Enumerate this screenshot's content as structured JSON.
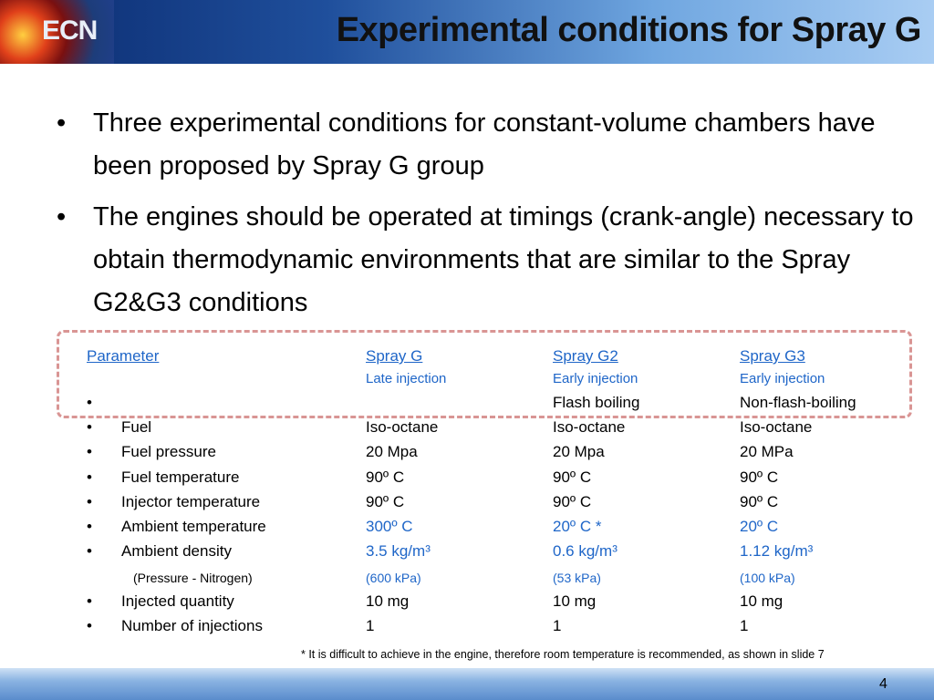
{
  "header": {
    "logo": "ECN",
    "title": "Experimental conditions for Spray G"
  },
  "bullets": [
    "Three experimental conditions for constant-volume chambers have been proposed by Spray G group",
    "The engines should be operated at timings (crank-angle) necessary to obtain thermodynamic environments that are similar to the Spray G2&G3 conditions"
  ],
  "table": {
    "header": [
      "Parameter",
      "Spray G",
      "Spray G2",
      "Spray G3"
    ],
    "subheader": [
      "Late injection",
      "Early injection",
      "Early injection"
    ],
    "rows": [
      {
        "label": null,
        "bullet": true,
        "values": [
          null,
          "Flash boiling",
          "Non-flash-boiling"
        ]
      },
      {
        "label": "Fuel",
        "bullet": true,
        "values": [
          "Iso-octane",
          "Iso-octane",
          "Iso-octane"
        ]
      },
      {
        "label": "Fuel pressure",
        "bullet": true,
        "values": [
          "20 Mpa",
          "20 Mpa",
          "20 MPa"
        ]
      },
      {
        "label": "Fuel temperature",
        "bullet": true,
        "values": [
          "90º C",
          "90º C",
          "90º C"
        ]
      },
      {
        "label": "Injector temperature",
        "bullet": true,
        "values": [
          "90º C",
          "90º C",
          "90º C"
        ]
      },
      {
        "label": "Ambient temperature",
        "bullet": true,
        "accent": true,
        "values": [
          "300º C",
          "20º C *",
          "20º C"
        ]
      },
      {
        "label": "Ambient density",
        "bullet": true,
        "accent": true,
        "values": [
          "3.5 kg/m³",
          "0.6 kg/m³",
          "1.12 kg/m³"
        ]
      },
      {
        "label": "(Pressure - Nitrogen)",
        "bullet": false,
        "accent": true,
        "small": true,
        "values": [
          "(600 kPa)",
          "(53 kPa)",
          "(100 kPa)"
        ]
      },
      {
        "label": "Injected quantity",
        "bullet": true,
        "values": [
          "10 mg",
          "10 mg",
          "10 mg"
        ]
      },
      {
        "label": "Number of injections",
        "bullet": true,
        "values": [
          "1",
          "1",
          "1"
        ]
      }
    ]
  },
  "footnote": "* It is difficult to achieve in the engine, therefore room temperature is recommended, as shown in slide 7",
  "page_number": "4"
}
